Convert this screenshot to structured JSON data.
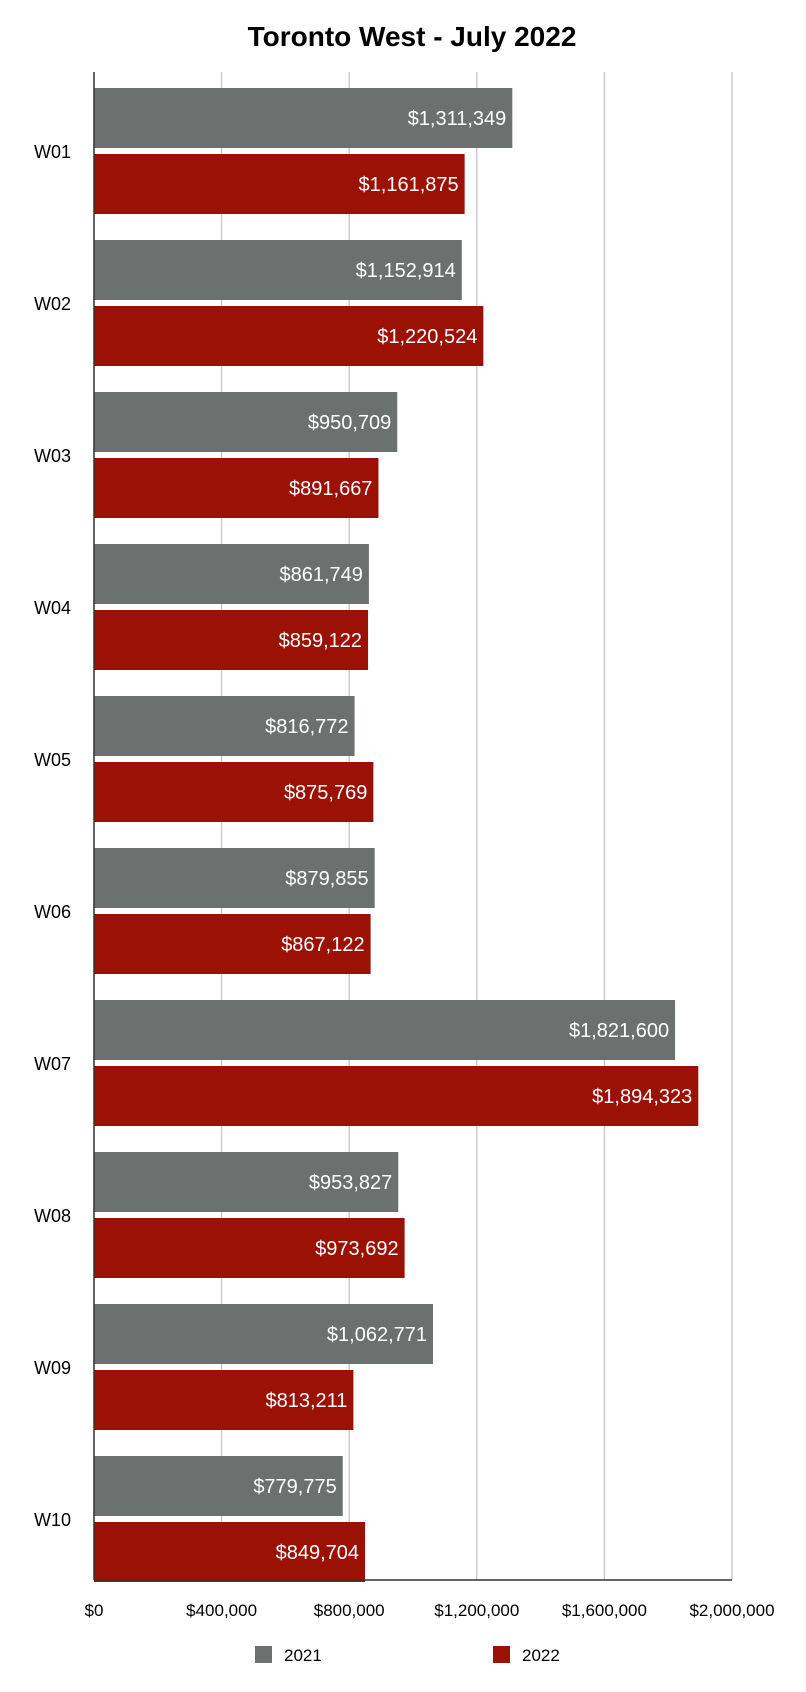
{
  "chart_data": {
    "type": "bar",
    "orientation": "horizontal",
    "title": "Toronto West - July 2022",
    "xlabel": "",
    "ylabel": "",
    "xlim": [
      0,
      2000000
    ],
    "x_ticks": [
      0,
      400000,
      800000,
      1200000,
      1600000,
      2000000
    ],
    "x_tick_labels": [
      "$0",
      "$400,000",
      "$800,000",
      "$1,200,000",
      "$1,600,000",
      "$2,000,000"
    ],
    "grid": true,
    "legend_position": "bottom",
    "categories": [
      "W01",
      "W02",
      "W03",
      "W04",
      "W05",
      "W06",
      "W07",
      "W08",
      "W09",
      "W10"
    ],
    "series": [
      {
        "name": "2021",
        "color": "#6b716e",
        "values": [
          1311349,
          1152914,
          950709,
          861749,
          816772,
          879855,
          1821600,
          953827,
          1062771,
          779775
        ],
        "labels": [
          "$1,311,349",
          "$1,152,914",
          "$950,709",
          "$861,749",
          "$816,772",
          "$879,855",
          "$1,821,600",
          "$953,827",
          "$1,062,771",
          "$779,775"
        ]
      },
      {
        "name": "2022",
        "color": "#9b1105",
        "values": [
          1161875,
          1220524,
          891667,
          859122,
          875769,
          867122,
          1894323,
          973692,
          813211,
          849704
        ],
        "labels": [
          "$1,161,875",
          "$1,220,524",
          "$891,667",
          "$859,122",
          "$875,769",
          "$867,122",
          "$1,894,323",
          "$973,692",
          "$813,211",
          "$849,704"
        ]
      }
    ]
  }
}
